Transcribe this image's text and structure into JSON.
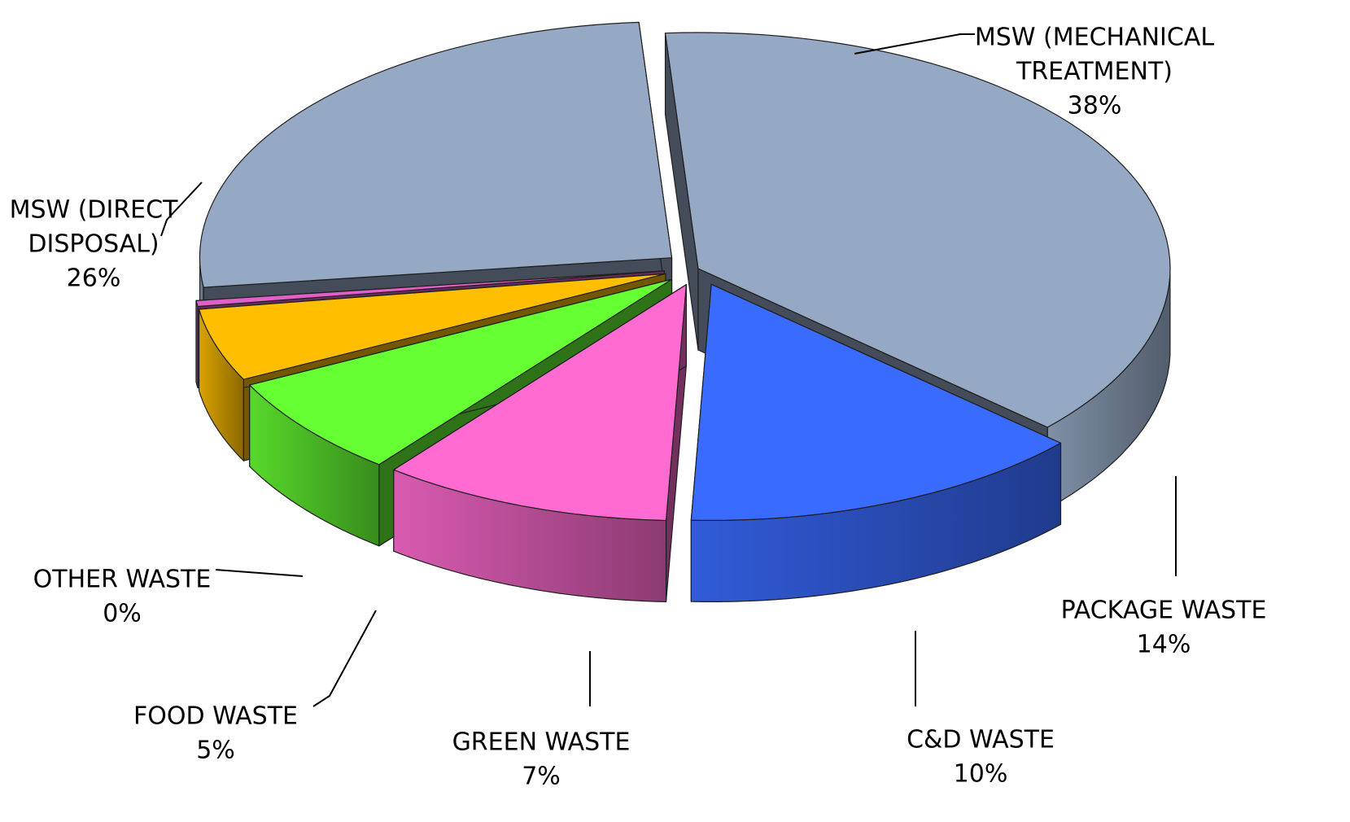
{
  "chart_data": {
    "type": "pie",
    "slices": [
      {
        "name": "MSW (MECHANICAL TREATMENT)",
        "label_lines": [
          "MSW (MECHANICAL",
          "TREATMENT)"
        ],
        "value": 38,
        "percent_label": "38%",
        "color": "#95A9C4"
      },
      {
        "name": "PACKAGE WASTE",
        "label_lines": [
          "PACKAGE WASTE"
        ],
        "value": 14,
        "percent_label": "14%",
        "color": "#3A6BFF"
      },
      {
        "name": "C&D WASTE",
        "label_lines": [
          "C&D WASTE"
        ],
        "value": 10,
        "percent_label": "10%",
        "color": "#FF6BD0"
      },
      {
        "name": "GREEN WASTE",
        "label_lines": [
          "GREEN WASTE"
        ],
        "value": 7,
        "percent_label": "7%",
        "color": "#66FF33"
      },
      {
        "name": "FOOD WASTE",
        "label_lines": [
          "FOOD WASTE"
        ],
        "value": 5,
        "percent_label": "5%",
        "color": "#FFBF00"
      },
      {
        "name": "OTHER WASTE",
        "label_lines": [
          "OTHER WASTE"
        ],
        "value": 0.4,
        "percent_label": "0%",
        "color": "#E060C8"
      },
      {
        "name": "MSW (DIRECT DISPOSAL)",
        "label_lines": [
          "MSW (DIRECT",
          "DISPOSAL)"
        ],
        "value": 26,
        "percent_label": "26%",
        "color": "#95A9C4"
      }
    ],
    "exploded_slices": [
      "PACKAGE WASTE",
      "C&D WASTE",
      "GREEN WASTE",
      "FOOD WASTE",
      "OTHER WASTE",
      "MSW (DIRECT DISPOSAL)"
    ],
    "style": "3d-exploded",
    "legend": "none"
  }
}
